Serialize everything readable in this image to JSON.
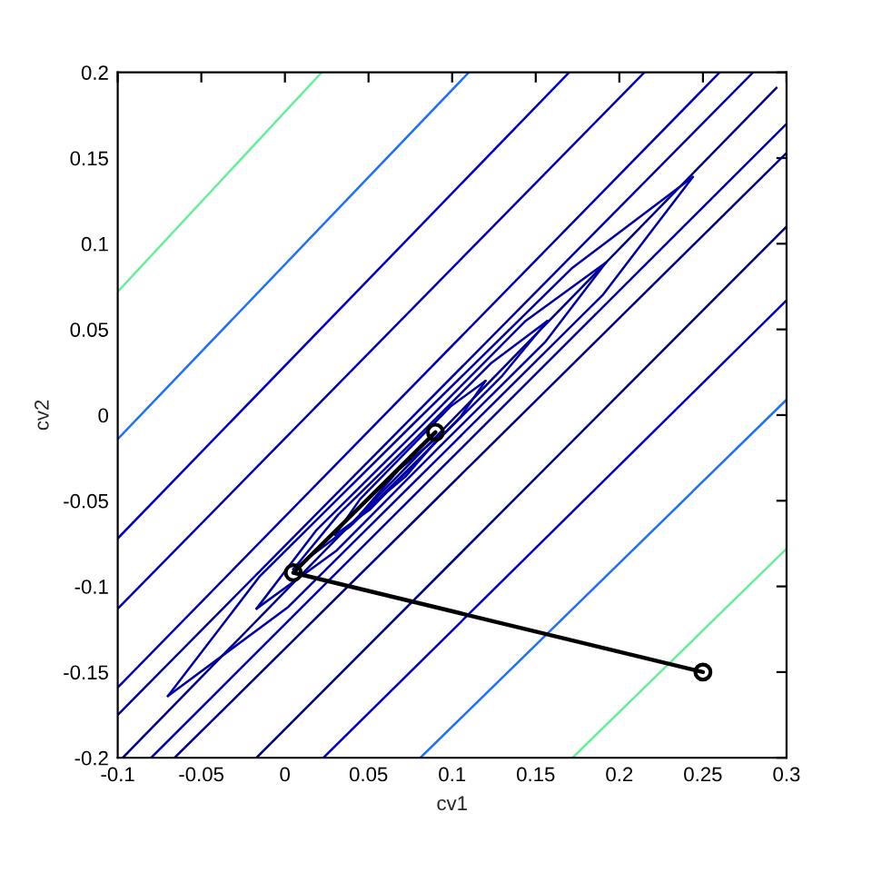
{
  "chart_data": {
    "type": "line",
    "xlabel": "cv1",
    "ylabel": "cv2",
    "xlim": [
      -0.1,
      0.3
    ],
    "ylim": [
      -0.2,
      0.2
    ],
    "xticks": [
      -0.1,
      -0.05,
      0,
      0.05,
      0.1,
      0.15,
      0.2,
      0.25,
      0.3
    ],
    "yticks": [
      -0.2,
      -0.15,
      -0.1,
      -0.05,
      0,
      0.05,
      0.1,
      0.15,
      0.2
    ],
    "grid": false,
    "legend": false,
    "marker": "none",
    "line_style": "solid",
    "series": [
      {
        "color": "#66ee99",
        "x": [
          -0.1,
          0.022
        ],
        "values": [
          0.072,
          0.2
        ]
      },
      {
        "color": "#1f6fff",
        "x": [
          -0.1,
          0.11
        ],
        "values": [
          -0.014,
          0.2
        ]
      },
      {
        "color": "#0000cc",
        "x": [
          -0.1,
          0.17
        ],
        "values": [
          -0.072,
          0.2
        ]
      },
      {
        "color": "#0000bb",
        "x": [
          -0.1,
          0.215
        ],
        "values": [
          -0.113,
          0.2
        ]
      },
      {
        "color": "#0000bb",
        "x": [
          -0.1,
          0.26
        ],
        "values": [
          -0.159,
          0.2
        ]
      },
      {
        "color": "#0000aa",
        "x": [
          -0.1,
          0.28
        ],
        "values": [
          -0.175,
          0.2
        ]
      },
      {
        "color": "#00008b",
        "x": [
          -0.097,
          0.294
        ],
        "values": [
          -0.2,
          0.191
        ]
      },
      {
        "color": "#0000aa",
        "x": [
          -0.08,
          0.3
        ],
        "values": [
          -0.2,
          0.17
        ]
      },
      {
        "color": "#00008b",
        "x": [
          -0.066,
          0.3
        ],
        "values": [
          -0.2,
          0.153
        ]
      },
      {
        "color": "#00008b",
        "x": [
          -0.017,
          0.3
        ],
        "values": [
          -0.2,
          0.11
        ]
      },
      {
        "color": "#0000cc",
        "x": [
          0.023,
          0.3
        ],
        "values": [
          -0.2,
          0.067
        ]
      },
      {
        "color": "#1f6fff",
        "x": [
          0.081,
          0.3
        ],
        "values": [
          -0.2,
          0.009
        ]
      },
      {
        "color": "#66ee99",
        "x": [
          0.172,
          0.3
        ],
        "values": [
          -0.2,
          -0.078
        ]
      },
      {
        "color": "#0000aa",
        "x": [
          -0.07,
          -0.015,
          0.078,
          0.172,
          0.244
        ],
        "values": [
          -0.164,
          -0.094,
          -0.004,
          0.086,
          0.139
        ]
      },
      {
        "color": "#0000aa",
        "x": [
          -0.07,
          0.002,
          0.096,
          0.19,
          0.244
        ],
        "values": [
          -0.164,
          -0.112,
          -0.021,
          0.07,
          0.139
        ]
      },
      {
        "color": "#0000aa",
        "x": [
          -0.017,
          0.019,
          0.082,
          0.144,
          0.192
        ],
        "values": [
          -0.113,
          -0.067,
          -0.006,
          0.055,
          0.089
        ]
      },
      {
        "color": "#0000aa",
        "x": [
          -0.017,
          0.031,
          0.093,
          0.156,
          0.192
        ],
        "values": [
          -0.113,
          -0.079,
          -0.018,
          0.043,
          0.089
        ]
      },
      {
        "color": "#0000aa",
        "x": [
          0.005,
          0.032,
          0.078,
          0.123,
          0.157
        ],
        "values": [
          -0.09,
          -0.058,
          -0.014,
          0.03,
          0.055
        ]
      },
      {
        "color": "#0000aa",
        "x": [
          0.005,
          0.039,
          0.085,
          0.13,
          0.157
        ],
        "values": [
          -0.09,
          -0.065,
          -0.021,
          0.023,
          0.055
        ]
      },
      {
        "color": "#0000aa",
        "x": [
          0.03,
          0.045,
          0.072,
          0.099,
          0.12
        ],
        "values": [
          -0.07,
          -0.049,
          -0.022,
          0.005,
          0.02
        ]
      },
      {
        "color": "#0000aa",
        "x": [
          0.03,
          0.051,
          0.078,
          0.105,
          0.12
        ],
        "values": [
          -0.07,
          -0.055,
          -0.028,
          -0.001,
          0.02
        ]
      },
      {
        "color": "#0000aa",
        "x": [
          0.045,
          0.068,
          0.095
        ],
        "values": [
          -0.058,
          -0.032,
          -0.01
        ]
      },
      {
        "color": "#0000aa",
        "x": [
          0.045,
          0.072,
          0.095
        ],
        "values": [
          -0.058,
          -0.036,
          -0.01
        ]
      },
      {
        "color": "#000000",
        "marker": "circle",
        "x": [
          0.25,
          0.005,
          0.09
        ],
        "values": [
          -0.15,
          -0.092,
          -0.01
        ]
      }
    ]
  }
}
